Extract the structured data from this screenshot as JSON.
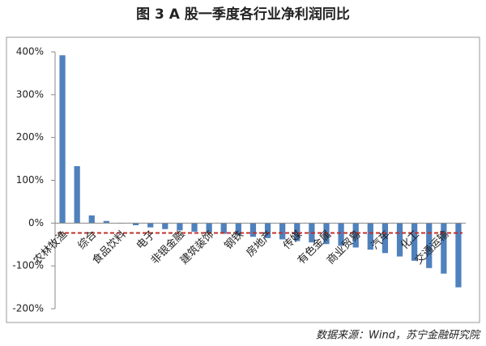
{
  "chart_data": {
    "type": "bar",
    "title": "图 3 A 股一季度各行业净利润同比",
    "source": "数据来源：Wind，苏宁金融研究院",
    "categories": [
      "农林牧渔",
      null,
      "综合",
      null,
      "食品饮料",
      null,
      "电子",
      null,
      "非银金融",
      null,
      "建筑装饰",
      null,
      "钢铁",
      null,
      "房地产",
      null,
      "传媒",
      null,
      "有色金属",
      null,
      "商业贸易",
      null,
      "汽车",
      null,
      "化工",
      null,
      "交通运输",
      null
    ],
    "values": [
      392,
      133,
      18,
      5,
      -1,
      -5,
      -10,
      -14,
      -17,
      -20,
      -22,
      -25,
      -28,
      -32,
      -35,
      -38,
      -42,
      -45,
      -49,
      -53,
      -57,
      -62,
      -70,
      -78,
      -88,
      -105,
      -118,
      -150
    ],
    "color": "#4f81bd",
    "reference_line": -23,
    "reference_color": "#c0302a",
    "ylim": [
      -200,
      400
    ],
    "yticks": [
      {
        "value": -200,
        "label": "-200%"
      },
      {
        "value": -100,
        "label": "-100%"
      },
      {
        "value": 0,
        "label": "0%"
      },
      {
        "value": 100,
        "label": "100%"
      },
      {
        "value": 200,
        "label": "200%"
      },
      {
        "value": 300,
        "label": "300%"
      },
      {
        "value": 400,
        "label": "400%"
      }
    ],
    "grid": false
  }
}
